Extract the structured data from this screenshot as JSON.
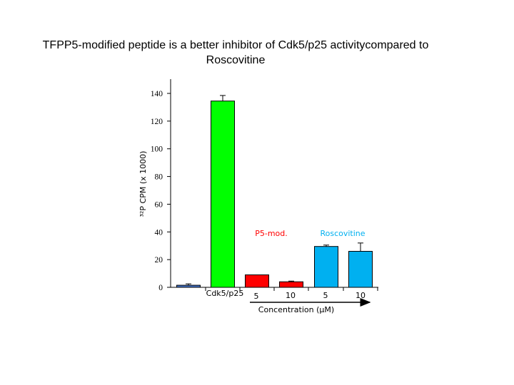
{
  "title_line1": "TFPP5-modified peptide is a better inhibitor of   Cdk5/p25  activitycompared to",
  "title_line2": "Roscovitine",
  "chart_data": {
    "type": "bar",
    "ylabel": "³²P CPM (x 1000)",
    "ylim": [
      0,
      140
    ],
    "yticks": [
      0,
      20,
      40,
      60,
      80,
      100,
      120,
      140
    ],
    "xlabel": "Concentration (µM)",
    "categories": [
      "",
      "Cdk5/p25",
      "5",
      "10",
      "5",
      "10"
    ],
    "values": [
      1.5,
      134.5,
      9,
      4,
      29.5,
      26
    ],
    "errors": [
      1,
      4,
      0,
      0.5,
      1,
      6
    ],
    "colors": [
      "#4472C4",
      "#00FF00",
      "#FF0000",
      "#FF0000",
      "#00B0F0",
      "#00B0F0"
    ],
    "annotations": [
      {
        "text": "P5-mod.",
        "color": "#FF0000"
      },
      {
        "text": "Roscovitine",
        "color": "#00B0F0"
      }
    ],
    "grid": false
  }
}
